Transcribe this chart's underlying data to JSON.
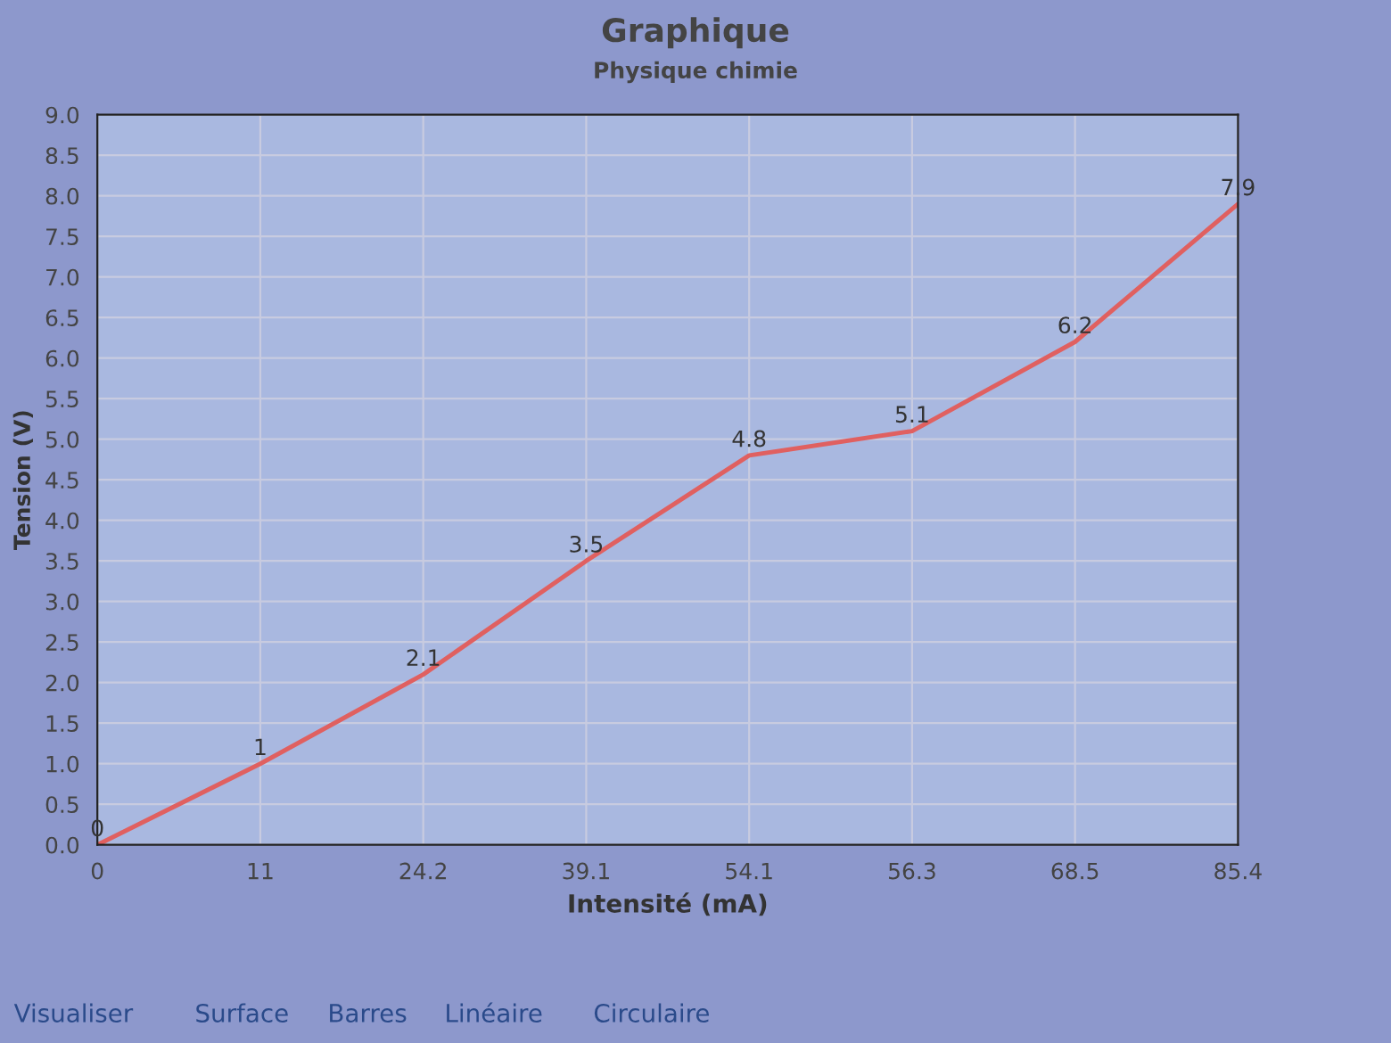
{
  "chart_data": {
    "type": "line",
    "title": "Graphique",
    "subtitle": "Physique chimie",
    "xlabel": "Intensité (mA)",
    "ylabel": "Tension (V)",
    "categories": [
      "0",
      "11",
      "24.2",
      "39.1",
      "54.1",
      "56.3",
      "68.5",
      "85.4"
    ],
    "series": [
      {
        "color": "#e06060",
        "values": [
          0,
          1,
          2.1,
          3.5,
          4.8,
          5.1,
          6.2,
          7.9
        ]
      }
    ],
    "ylim": [
      0,
      9
    ],
    "yticks": [
      {
        "value": 0,
        "label": "0.0"
      },
      {
        "value": 0.5,
        "label": "0.5"
      },
      {
        "value": 1,
        "label": "1.0"
      },
      {
        "value": 1.5,
        "label": "1.5"
      },
      {
        "value": 2,
        "label": "2.0"
      },
      {
        "value": 2.5,
        "label": "2.5"
      },
      {
        "value": 3,
        "label": "3.0"
      },
      {
        "value": 3.5,
        "label": "3.5"
      },
      {
        "value": 4,
        "label": "4.0"
      },
      {
        "value": 4.5,
        "label": "4.5"
      },
      {
        "value": 5,
        "label": "5.0"
      },
      {
        "value": 5.5,
        "label": "5.5"
      },
      {
        "value": 6,
        "label": "6.0"
      },
      {
        "value": 6.5,
        "label": "6.5"
      },
      {
        "value": 7,
        "label": "7.0"
      },
      {
        "value": 7.5,
        "label": "7.5"
      },
      {
        "value": 8,
        "label": "8.0"
      },
      {
        "value": 8.5,
        "label": "8.5"
      },
      {
        "value": 9,
        "label": "9.0"
      }
    ],
    "data_labels": true,
    "grid": true,
    "marker": "none",
    "line_style": "solid",
    "annotations": [
      "Visualiser",
      "Surface",
      "Barres",
      "Linéaire",
      "Circulaire"
    ]
  }
}
